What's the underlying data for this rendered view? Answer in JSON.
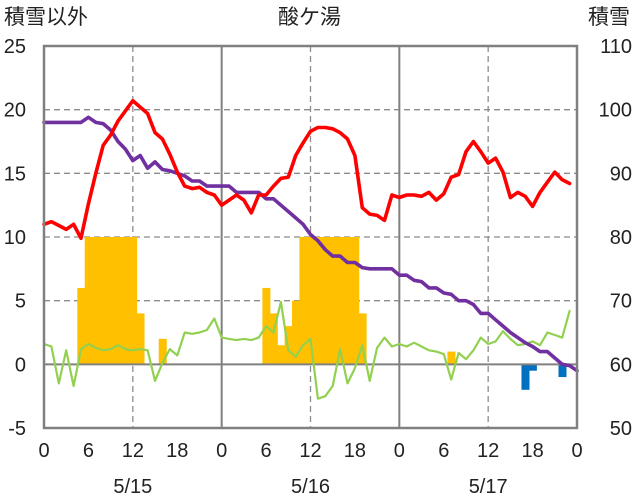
{
  "chart_data": {
    "type": "bar+line",
    "title": "酸ケ湯",
    "left_axis_label": "積雪以外",
    "right_axis_label": "積雪",
    "left_ylim": [
      -5,
      25
    ],
    "left_yticks": [
      -5,
      0,
      5,
      10,
      15,
      20,
      25
    ],
    "right_ylim": [
      50,
      110
    ],
    "right_yticks": [
      50,
      60,
      70,
      80,
      90,
      100,
      110
    ],
    "x_range_hours": [
      0,
      72
    ],
    "x_ticks": [
      {
        "hour": 0,
        "label": "0"
      },
      {
        "hour": 6,
        "label": "6"
      },
      {
        "hour": 12,
        "label": "12"
      },
      {
        "hour": 18,
        "label": "18"
      },
      {
        "hour": 24,
        "label": "0"
      },
      {
        "hour": 30,
        "label": "6"
      },
      {
        "hour": 36,
        "label": "12"
      },
      {
        "hour": 42,
        "label": "18"
      },
      {
        "hour": 48,
        "label": "0"
      },
      {
        "hour": 54,
        "label": "6"
      },
      {
        "hour": 60,
        "label": "12"
      },
      {
        "hour": 66,
        "label": "18"
      },
      {
        "hour": 72,
        "label": "0"
      }
    ],
    "day_labels": [
      {
        "hour": 12,
        "label": "5/15"
      },
      {
        "hour": 36,
        "label": "5/16"
      },
      {
        "hour": 60,
        "label": "5/17"
      }
    ],
    "day_dividers": [
      24,
      48
    ],
    "dashed_lines_hours": [
      12,
      36,
      60
    ],
    "dashed_lines_values": [
      5,
      10,
      15,
      20
    ],
    "grid": true,
    "colors": {
      "red": "#ff0000",
      "purple": "#7030a0",
      "green": "#92d050",
      "orange": "#ffc000",
      "blue": "#0070c0",
      "frame": "#808080"
    },
    "series": [
      {
        "color_key": "red",
        "axis": "left",
        "kind": "line",
        "x": [
          0,
          1,
          2,
          3,
          4,
          5,
          6,
          7,
          8,
          9,
          10,
          11,
          12,
          13,
          14,
          15,
          16,
          17,
          18,
          19,
          20,
          21,
          22,
          23,
          24,
          25,
          26,
          27,
          28,
          29,
          30,
          31,
          32,
          33,
          34,
          35,
          36,
          37,
          38,
          39,
          40,
          41,
          42,
          43,
          44,
          45,
          46,
          47,
          48,
          49,
          50,
          51,
          52,
          53,
          54,
          55,
          56,
          57,
          58,
          59,
          60,
          61,
          62,
          63,
          64,
          65,
          66,
          67,
          68,
          69,
          70,
          71
        ],
        "y": [
          11,
          11.2,
          10.9,
          10.6,
          11,
          9.9,
          12.6,
          15,
          17.2,
          18,
          19.1,
          19.9,
          20.7,
          20.2,
          19.7,
          18.2,
          17.7,
          16.5,
          15.1,
          14,
          13.8,
          13.9,
          13.5,
          13.3,
          12.5,
          12.9,
          13.3,
          12.9,
          11.9,
          13.3,
          13.3,
          14,
          14.6,
          14.7,
          16.4,
          17.4,
          18.3,
          18.6,
          18.6,
          18.5,
          18.2,
          17.7,
          16.4,
          12.3,
          11.8,
          11.7,
          11.3,
          13.3,
          13.1,
          13.3,
          13.3,
          13.2,
          13.5,
          12.9,
          13.4,
          14.7,
          14.9,
          16.7,
          17.5,
          16.7,
          15.8,
          16.2,
          15.1,
          13.1,
          13.5,
          13.2,
          12.4,
          13.5,
          14.3,
          15.1,
          14.5,
          14.2
        ]
      },
      {
        "color_key": "purple",
        "axis": "left",
        "kind": "line",
        "x": [
          0,
          1,
          2,
          3,
          4,
          5,
          6,
          7,
          8,
          9,
          10,
          11,
          12,
          13,
          14,
          15,
          16,
          17,
          18,
          19,
          20,
          21,
          22,
          23,
          24,
          25,
          26,
          27,
          28,
          29,
          30,
          31,
          32,
          33,
          34,
          35,
          36,
          37,
          38,
          39,
          40,
          41,
          42,
          43,
          44,
          45,
          46,
          47,
          48,
          49,
          50,
          51,
          52,
          53,
          54,
          55,
          56,
          57,
          58,
          59,
          60,
          61,
          62,
          63,
          64,
          65,
          66,
          67,
          68,
          69,
          70,
          71,
          72
        ],
        "y": [
          19,
          19,
          19,
          19,
          19,
          19,
          19.4,
          19,
          18.9,
          18.4,
          17.5,
          16.9,
          16,
          16.4,
          15.4,
          15.9,
          15.3,
          15.2,
          15,
          14.8,
          14.4,
          14.4,
          14,
          14,
          14,
          14,
          13.5,
          13.5,
          13.5,
          13.5,
          13,
          13,
          12.5,
          12,
          11.5,
          11,
          10.2,
          9.7,
          9,
          8.5,
          8.5,
          8,
          8,
          7.6,
          7.5,
          7.5,
          7.5,
          7.5,
          7,
          7,
          6.6,
          6.5,
          6,
          6,
          5.6,
          5.5,
          5,
          5,
          4.7,
          4,
          4,
          3.5,
          3,
          2.5,
          2.1,
          1.7,
          1.4,
          1,
          1,
          0.5,
          0,
          -0.1,
          -0.5
        ]
      },
      {
        "color_key": "green",
        "axis": "left",
        "kind": "line",
        "x": [
          0,
          1,
          2,
          3,
          4,
          5,
          6,
          7,
          8,
          9,
          10,
          11,
          12,
          13,
          14,
          15,
          16,
          17,
          18,
          19,
          20,
          21,
          22,
          23,
          24,
          25,
          26,
          27,
          28,
          29,
          30,
          31,
          32,
          33,
          34,
          35,
          36,
          37,
          38,
          39,
          40,
          41,
          42,
          43,
          44,
          45,
          46,
          47,
          48,
          49,
          50,
          51,
          52,
          53,
          54,
          55,
          56,
          57,
          58,
          59,
          60,
          61,
          62,
          63,
          64,
          65,
          66,
          67,
          68,
          69,
          70,
          71
        ],
        "y": [
          1.6,
          1.4,
          -1.5,
          1.1,
          -1.7,
          1.2,
          1.6,
          1.3,
          1.1,
          1.2,
          1.5,
          1.2,
          1.1,
          1.2,
          1.1,
          -1.3,
          0.1,
          1.2,
          0.7,
          2.5,
          2.4,
          2.5,
          2.7,
          3.6,
          2.1,
          2,
          1.9,
          2,
          1.9,
          2.1,
          3,
          2.5,
          4.9,
          1.1,
          0.6,
          1.5,
          2,
          -2.7,
          -2.5,
          -1.7,
          1.2,
          -1.5,
          -0.3,
          1.5,
          -1.3,
          1.3,
          2.1,
          1.4,
          1.6,
          1.4,
          1.7,
          1.4,
          1.1,
          1,
          0.8,
          -1.2,
          0.9,
          0.4,
          1.1,
          2.1,
          1.6,
          1.8,
          2.6,
          2,
          1.5,
          1.6,
          1.8,
          1.5,
          2.5,
          2.3,
          2.1,
          4.2
        ]
      },
      {
        "color_key": "orange",
        "axis": "left",
        "kind": "bar",
        "x": [
          5,
          6,
          7,
          8,
          9,
          10,
          11,
          12,
          13,
          16,
          30,
          31,
          32,
          33,
          34,
          35,
          36,
          37,
          38,
          39,
          40,
          41,
          42,
          43,
          55
        ],
        "y": [
          6,
          10,
          10,
          10,
          10,
          10,
          10,
          10,
          4,
          2,
          6,
          4,
          1.5,
          3,
          5,
          10,
          10,
          10,
          10,
          10,
          10,
          10,
          10,
          4,
          1
        ]
      },
      {
        "color_key": "blue",
        "axis": "left",
        "kind": "bar",
        "x": [
          65,
          66,
          70
        ],
        "y": [
          -2,
          -0.5,
          -1
        ]
      }
    ]
  }
}
